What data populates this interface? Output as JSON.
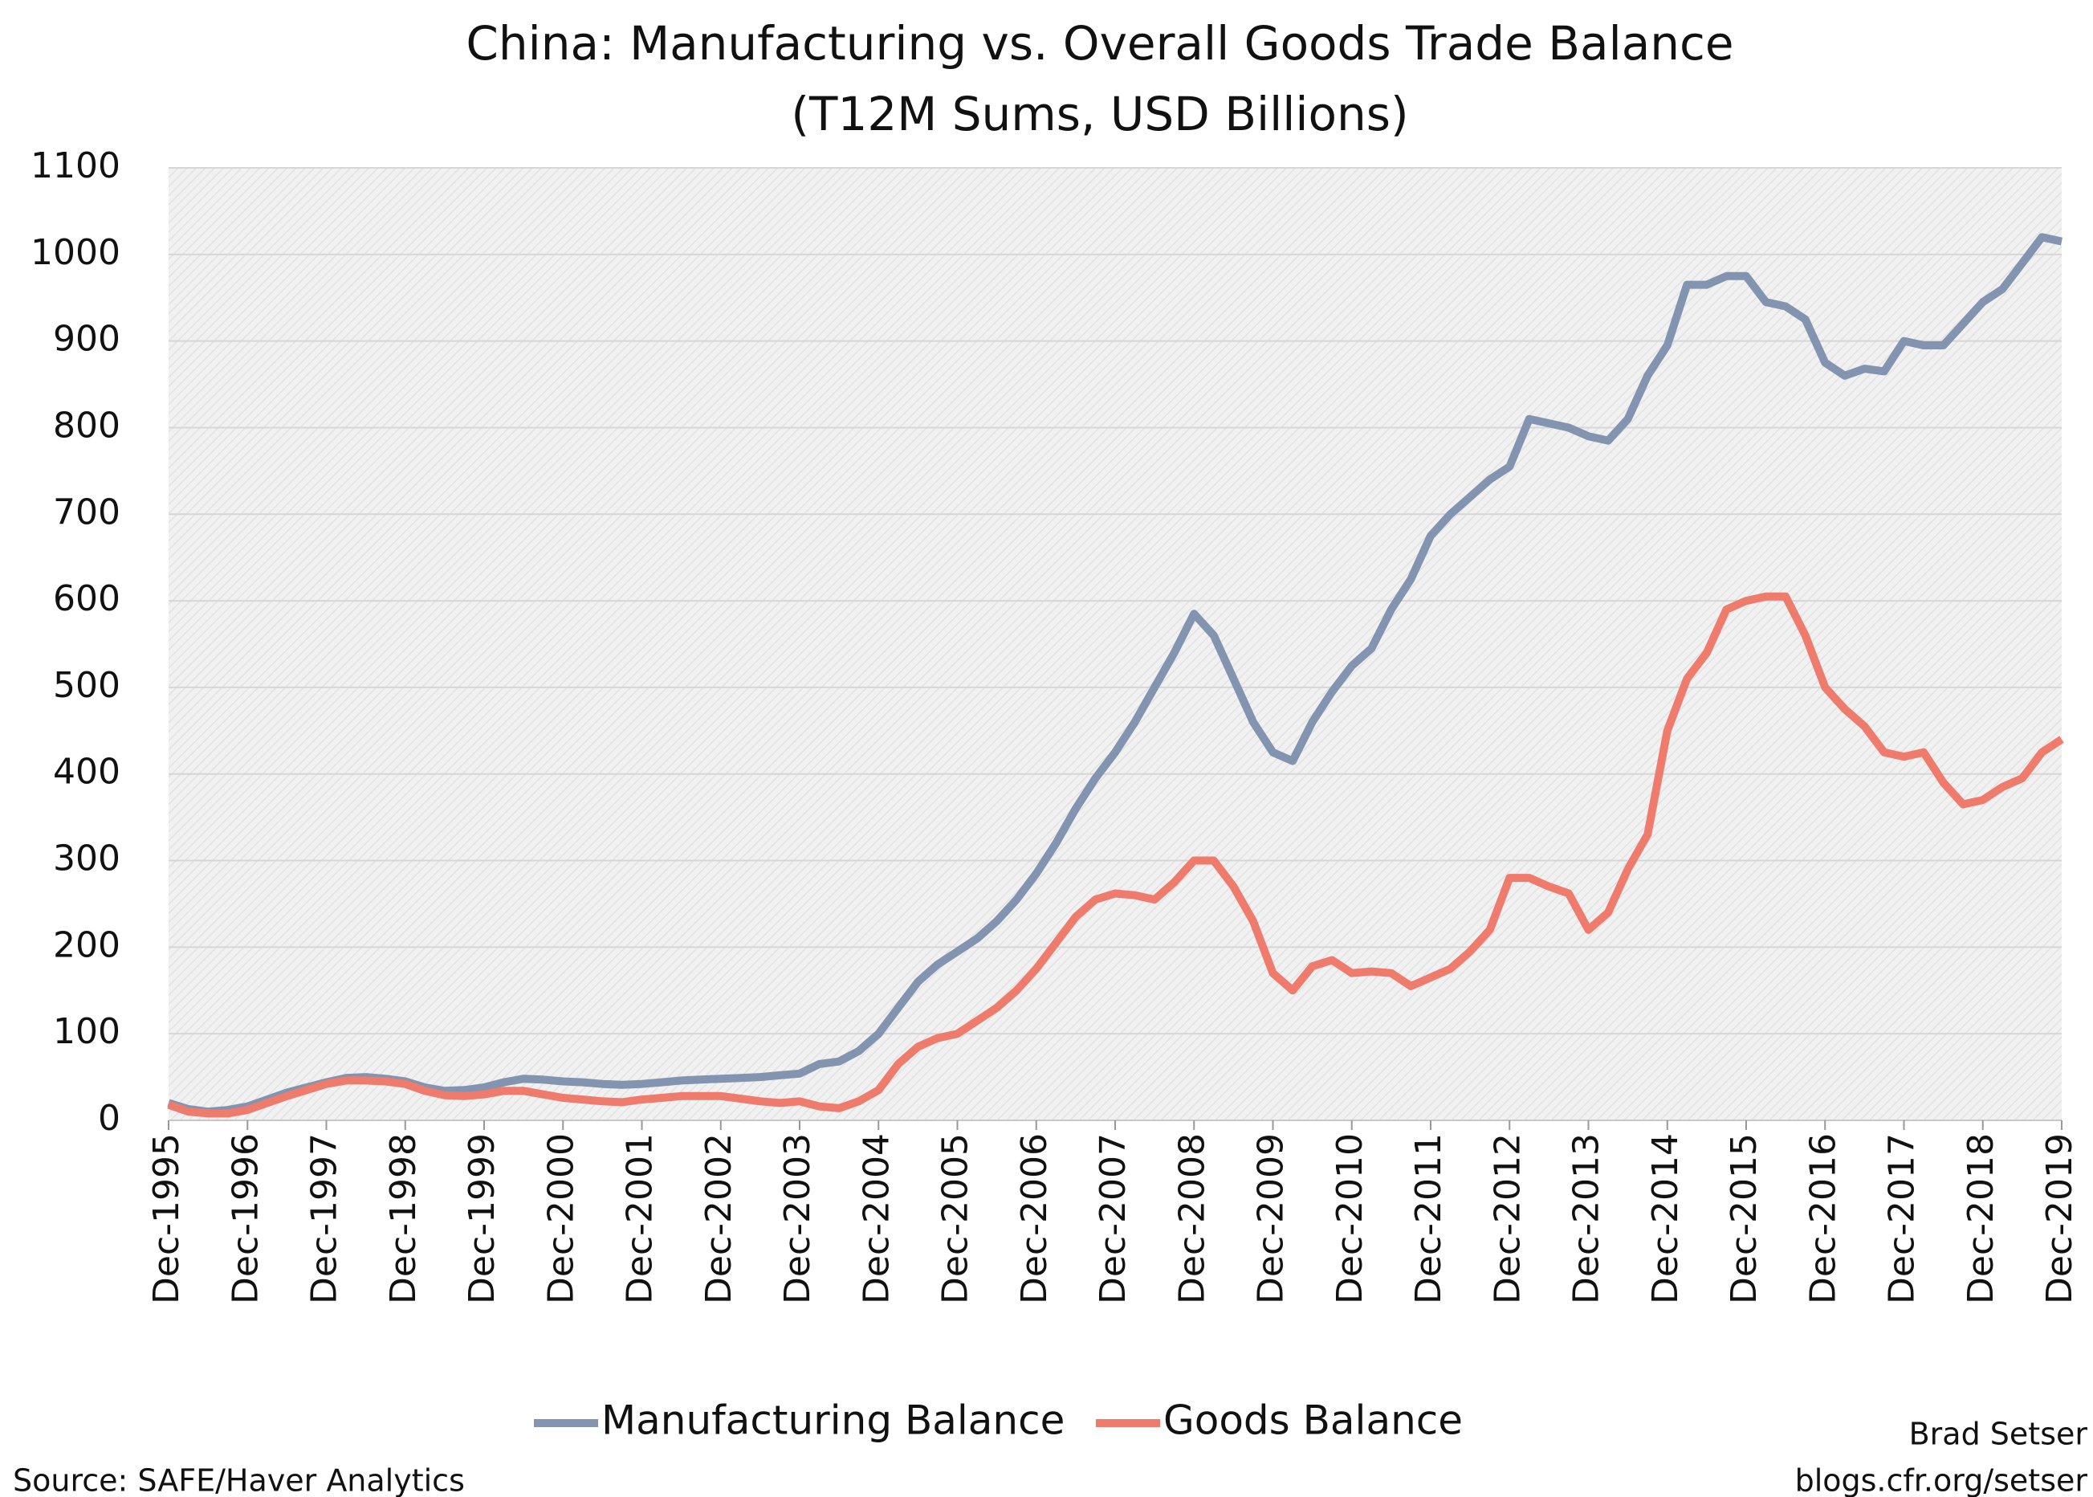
{
  "chart_data": {
    "type": "line",
    "title": "China: Manufacturing vs. Overall Goods Trade Balance",
    "subtitle": "(T12M Sums, USD Billions)",
    "source": "Source: SAFE/Haver Analytics",
    "author": "Brad Setser",
    "website": "blogs.cfr.org/setser",
    "categories": [
      "Dec-1995",
      null,
      null,
      null,
      "Dec-1996",
      null,
      null,
      null,
      "Dec-1997",
      null,
      null,
      null,
      "Dec-1998",
      null,
      null,
      null,
      "Dec-1999",
      null,
      null,
      null,
      "Dec-2000",
      null,
      null,
      null,
      "Dec-2001",
      null,
      null,
      null,
      "Dec-2002",
      null,
      null,
      null,
      "Dec-2003",
      null,
      null,
      null,
      "Dec-2004",
      null,
      null,
      null,
      "Dec-2005",
      null,
      null,
      null,
      "Dec-2006",
      null,
      null,
      null,
      "Dec-2007",
      null,
      null,
      null,
      "Dec-2008",
      null,
      null,
      null,
      "Dec-2009",
      null,
      null,
      null,
      "Dec-2010",
      null,
      null,
      null,
      "Dec-2011",
      null,
      null,
      null,
      "Dec-2012",
      null,
      null,
      null,
      "Dec-2013",
      null,
      null,
      null,
      "Dec-2014",
      null,
      null,
      null,
      "Dec-2015",
      null,
      null,
      null,
      "Dec-2016",
      null,
      null,
      null,
      "Dec-2017",
      null,
      null,
      null,
      "Dec-2018",
      null,
      null,
      null,
      "Dec-2019"
    ],
    "series": [
      {
        "name": "Manufacturing Balance",
        "color": "#8294b0",
        "values": [
          20,
          13,
          10,
          12,
          16,
          24,
          32,
          38,
          44,
          49,
          50,
          48,
          45,
          38,
          34,
          35,
          38,
          44,
          48,
          47,
          45,
          44,
          42,
          41,
          42,
          44,
          46,
          47,
          48,
          49,
          50,
          52,
          54,
          65,
          68,
          80,
          100,
          130,
          160,
          180,
          195,
          210,
          230,
          255,
          285,
          320,
          360,
          395,
          425,
          460,
          500,
          540,
          585,
          560,
          510,
          460,
          425,
          415,
          460,
          495,
          525,
          545,
          590,
          625,
          675,
          700,
          720,
          740,
          755,
          810,
          805,
          800,
          790,
          785,
          810,
          860,
          895,
          965,
          965,
          975,
          975,
          945,
          940,
          925,
          875,
          860,
          868,
          865,
          900,
          895,
          895,
          920,
          945,
          960,
          990,
          1020,
          1015
        ]
      },
      {
        "name": "Goods Balance",
        "color": "#ee7b6c",
        "values": [
          18,
          10,
          8,
          8,
          12,
          20,
          28,
          35,
          42,
          46,
          46,
          45,
          42,
          34,
          29,
          28,
          30,
          34,
          34,
          30,
          26,
          24,
          22,
          21,
          24,
          26,
          28,
          28,
          28,
          25,
          22,
          20,
          22,
          16,
          14,
          22,
          35,
          65,
          85,
          95,
          100,
          115,
          130,
          150,
          175,
          205,
          235,
          255,
          262,
          260,
          255,
          275,
          300,
          300,
          270,
          230,
          170,
          150,
          178,
          185,
          170,
          172,
          170,
          155,
          165,
          175,
          195,
          220,
          280,
          280,
          270,
          262,
          220,
          240,
          290,
          330,
          450,
          510,
          540,
          590,
          600,
          605,
          605,
          560,
          500,
          475,
          455,
          425,
          420,
          425,
          390,
          365,
          370,
          385,
          395,
          425,
          440
        ]
      }
    ],
    "ylim": [
      0,
      1100
    ],
    "yticks": [
      0,
      100,
      200,
      300,
      400,
      500,
      600,
      700,
      800,
      900,
      1000,
      1100
    ],
    "grid": true
  }
}
